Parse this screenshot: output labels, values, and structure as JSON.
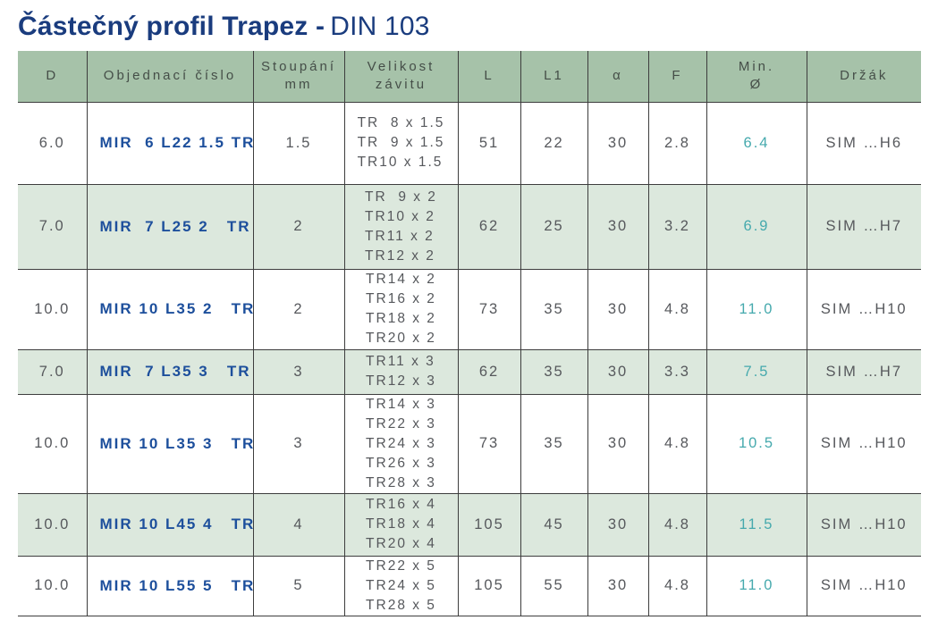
{
  "page": {
    "title_bold": "Částečný profil Trapez -",
    "title_regular": "DIN 103"
  },
  "colors": {
    "title_navy": "#1a3c7e",
    "order_number_blue": "#1d4f9c",
    "min_diameter_teal": "#45a9ad",
    "header_green": "#a6c2a9",
    "alt_row_green": "#dce8dd",
    "border_dark": "#3d3d3d",
    "body_text_gray": "#56585c"
  },
  "table": {
    "headers": [
      "D",
      "Objednací číslo",
      "Stoupání\nmm",
      "Velikost\nzávitu",
      "L",
      "L1",
      "α",
      "F",
      "Min.\nØ",
      "Držák"
    ],
    "rows": [
      {
        "d": "6.0",
        "order": "MIR  6 L22 1.5 TR",
        "pitch": "1.5",
        "threads": "TR  8 x 1.5\nTR  9 x 1.5\nTR10 x 1.5",
        "l": "51",
        "l1": "22",
        "alpha": "30",
        "f": "2.8",
        "min_d": "6.4",
        "holder": "SIM …H6"
      },
      {
        "d": "7.0",
        "order": "MIR  7 L25 2   TR",
        "pitch": "2",
        "threads": "TR  9 x 2\nTR10 x 2\nTR11 x 2\nTR12 x 2",
        "l": "62",
        "l1": "25",
        "alpha": "30",
        "f": "3.2",
        "min_d": "6.9",
        "holder": "SIM …H7"
      },
      {
        "d": "10.0",
        "order": "MIR 10 L35 2   TR",
        "pitch": "2",
        "threads": "TR14 x 2\nTR16 x 2\nTR18 x 2\nTR20 x 2",
        "l": "73",
        "l1": "35",
        "alpha": "30",
        "f": "4.8",
        "min_d": "11.0",
        "holder": "SIM …H10"
      },
      {
        "d": "7.0",
        "order": "MIR  7 L35 3   TR",
        "pitch": "3",
        "threads": "TR11 x 3\nTR12 x 3",
        "l": "62",
        "l1": "35",
        "alpha": "30",
        "f": "3.3",
        "min_d": "7.5",
        "holder": "SIM …H7"
      },
      {
        "d": "10.0",
        "order": "MIR 10 L35 3   TR",
        "pitch": "3",
        "threads": "TR14 x 3\nTR22 x 3\nTR24 x 3\nTR26 x 3\nTR28 x 3",
        "l": "73",
        "l1": "35",
        "alpha": "30",
        "f": "4.8",
        "min_d": "10.5",
        "holder": "SIM …H10"
      },
      {
        "d": "10.0",
        "order": "MIR 10 L45 4   TR",
        "pitch": "4",
        "threads": "TR16 x 4\nTR18 x 4\nTR20 x 4",
        "l": "105",
        "l1": "45",
        "alpha": "30",
        "f": "4.8",
        "min_d": "11.5",
        "holder": "SIM …H10"
      },
      {
        "d": "10.0",
        "order": "MIR 10 L55 5   TR",
        "pitch": "5",
        "threads": "TR22 x 5\nTR24 x 5\nTR28 x 5",
        "l": "105",
        "l1": "55",
        "alpha": "30",
        "f": "4.8",
        "min_d": "11.0",
        "holder": "SIM …H10"
      }
    ]
  }
}
